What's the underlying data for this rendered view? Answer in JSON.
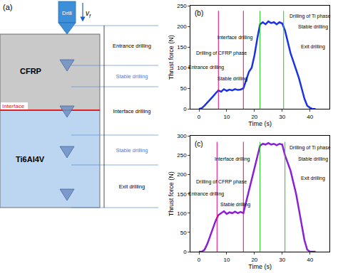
{
  "chart_data": [
    {
      "type": "line",
      "title": "(b)",
      "x_label": "Time (s)",
      "y_label": "Thrust force (N)",
      "x": [
        0,
        1,
        2,
        3,
        4,
        5,
        6,
        7,
        8,
        9,
        10,
        11,
        12,
        13,
        14,
        15,
        16,
        17,
        18,
        19,
        20,
        21,
        22,
        23,
        24,
        25,
        26,
        27,
        28,
        29,
        30,
        31,
        32,
        33,
        34,
        35,
        36,
        37,
        38,
        39,
        40,
        41,
        42
      ],
      "values": [
        0,
        2,
        8,
        15,
        22,
        30,
        38,
        45,
        42,
        48,
        44,
        47,
        45,
        48,
        46,
        47,
        50,
        70,
        90,
        100,
        130,
        170,
        205,
        210,
        205,
        212,
        208,
        210,
        205,
        210,
        207,
        190,
        160,
        135,
        115,
        95,
        75,
        50,
        25,
        8,
        3,
        0,
        0
      ],
      "color": "#1a33e6",
      "xlim": [
        -3,
        47
      ],
      "xticks": [
        0,
        10,
        20,
        30,
        40
      ],
      "ylim": [
        0,
        250
      ],
      "yticks": [
        0,
        50,
        100,
        150,
        200,
        250
      ],
      "grid": false,
      "annotations": [
        "Drilling of Ti phase",
        "Stable drilling",
        "Interface drilling",
        "Drilling of CFRP phase",
        "Entrance drilling",
        "Stable drilling",
        "Exit drilling"
      ],
      "boundaries": [
        {
          "x": 7,
          "color": "#e8007d"
        },
        {
          "x": 16,
          "color": "#e8007d"
        },
        {
          "x": 22,
          "color": "#1fc41f"
        },
        {
          "x": 30.5,
          "color": "#1fc41f"
        }
      ]
    },
    {
      "type": "line",
      "title": "(c)",
      "x_label": "Time (s)",
      "y_label": "Thrust force (N)",
      "x": [
        0,
        1,
        2,
        3,
        4,
        5,
        6,
        7,
        8,
        9,
        10,
        11,
        12,
        13,
        14,
        15,
        16,
        17,
        18,
        19,
        20,
        21,
        22,
        23,
        24,
        25,
        26,
        27,
        28,
        29,
        30,
        31,
        32,
        33,
        34,
        35,
        36,
        37,
        38,
        39,
        40,
        41,
        42
      ],
      "values": [
        0,
        0,
        5,
        20,
        40,
        60,
        80,
        95,
        100,
        105,
        98,
        102,
        100,
        104,
        100,
        103,
        100,
        130,
        160,
        190,
        220,
        250,
        275,
        280,
        278,
        282,
        278,
        280,
        276,
        280,
        278,
        250,
        230,
        210,
        180,
        150,
        110,
        70,
        30,
        5,
        0,
        0,
        0
      ],
      "color": "#8b1fd6",
      "xlim": [
        -3,
        47
      ],
      "xticks": [
        0,
        10,
        20,
        30,
        40
      ],
      "ylim": [
        0,
        300
      ],
      "yticks": [
        0,
        50,
        100,
        150,
        200,
        250,
        300
      ],
      "grid": false,
      "annotations": [
        "Drilling of Ti phase",
        "Stable drilling",
        "Interface drilling",
        "Drilling of CFRP phase",
        "Entrance drilling",
        "Stable drilling",
        "Exit drilling"
      ],
      "boundaries": [
        {
          "x": 6.5,
          "color": "#e8007d"
        },
        {
          "x": 16,
          "color": "#e8007d"
        },
        {
          "x": 22,
          "color": "#1fc41f"
        },
        {
          "x": 31,
          "color": "#1fc41f"
        }
      ]
    }
  ],
  "diagram": {
    "title": "(a)",
    "tool": "Drill",
    "feed": {
      "symbol": "v",
      "subscript": "f"
    },
    "layers": [
      {
        "label": "CFRP",
        "color": "#c9c9c9"
      },
      {
        "label": "Ti6Al4V",
        "color": "#bcd5f0"
      }
    ],
    "interface": {
      "label": "Interface",
      "color": "#e32020"
    },
    "stages": [
      {
        "label": "Entrance drilling",
        "color": "#000000"
      },
      {
        "label": "Stable drilling",
        "color": "#3d86d6"
      },
      {
        "label": "Interface drilling",
        "color": "#000000"
      },
      {
        "label": "Stable drilling",
        "color": "#3d86d6"
      },
      {
        "label": "Exit drilling",
        "color": "#000000"
      }
    ]
  }
}
